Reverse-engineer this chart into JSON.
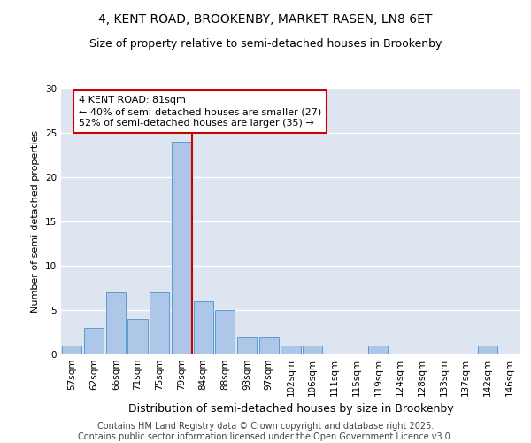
{
  "title": "4, KENT ROAD, BROOKENBY, MARKET RASEN, LN8 6ET",
  "subtitle": "Size of property relative to semi-detached houses in Brookenby",
  "xlabel": "Distribution of semi-detached houses by size in Brookenby",
  "ylabel": "Number of semi-detached properties",
  "categories": [
    "57sqm",
    "62sqm",
    "66sqm",
    "71sqm",
    "75sqm",
    "79sqm",
    "84sqm",
    "88sqm",
    "93sqm",
    "97sqm",
    "102sqm",
    "106sqm",
    "111sqm",
    "115sqm",
    "119sqm",
    "124sqm",
    "128sqm",
    "133sqm",
    "137sqm",
    "142sqm",
    "146sqm"
  ],
  "values": [
    1,
    3,
    7,
    4,
    7,
    24,
    6,
    5,
    2,
    2,
    1,
    1,
    0,
    0,
    1,
    0,
    0,
    0,
    0,
    1,
    0
  ],
  "bar_color": "#aec6e8",
  "bar_edge_color": "#5b9bd5",
  "highlight_index": 5,
  "highlight_color": "#cc0000",
  "property_sqm": 81,
  "annotation_text": "4 KENT ROAD: 81sqm\n← 40% of semi-detached houses are smaller (27)\n52% of semi-detached houses are larger (35) →",
  "annotation_box_color": "#ffffff",
  "annotation_border_color": "#cc0000",
  "ylim": [
    0,
    30
  ],
  "yticks": [
    0,
    5,
    10,
    15,
    20,
    25,
    30
  ],
  "background_color": "#dde5f0",
  "footer_text": "Contains HM Land Registry data © Crown copyright and database right 2025.\nContains public sector information licensed under the Open Government Licence v3.0.",
  "title_fontsize": 10,
  "subtitle_fontsize": 9,
  "xlabel_fontsize": 9,
  "ylabel_fontsize": 8,
  "tick_fontsize": 7.5,
  "footer_fontsize": 7,
  "ann_fontsize": 8
}
